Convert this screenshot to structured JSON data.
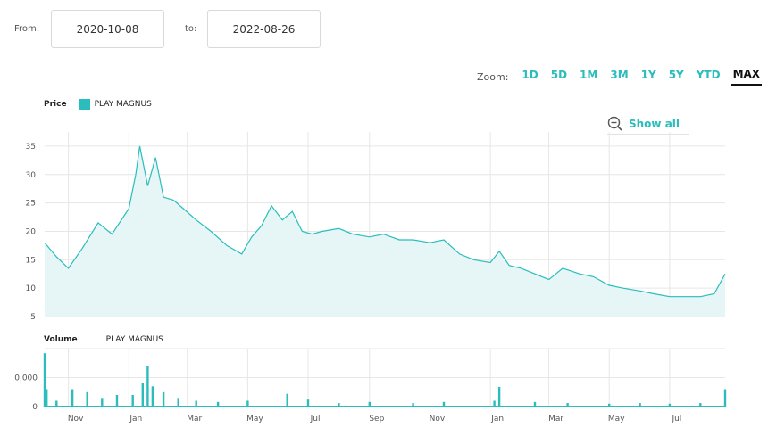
{
  "range": {
    "from_label": "From:",
    "from_value": "2020-10-08",
    "to_label": "to:",
    "to_value": "2022-08-26"
  },
  "zoom": {
    "label": "Zoom:",
    "options": [
      "1D",
      "5D",
      "1M",
      "3M",
      "1Y",
      "5Y",
      "YTD",
      "MAX"
    ],
    "selected": "MAX"
  },
  "show_all_label": "Show all",
  "colors": {
    "accent": "#2bbcbc",
    "fill": "#e6f6f6",
    "grid": "#e6e6e6"
  },
  "chart_data": [
    {
      "type": "area",
      "title": "Price",
      "legend": "PLAY MAGNUS",
      "yticks": [
        5,
        10,
        15,
        20,
        25,
        30,
        35
      ],
      "ylim": [
        5,
        37.5
      ],
      "xlim": [
        "2020-10-08",
        "2022-08-26"
      ],
      "x_tick_labels": [
        "Nov",
        "Jan",
        "Mar",
        "May",
        "Jul",
        "Sep",
        "Nov",
        "Jan",
        "Mar",
        "May",
        "Jul"
      ],
      "x": [
        "2020-10-08",
        "2020-10-20",
        "2020-11-01",
        "2020-11-15",
        "2020-12-01",
        "2020-12-15",
        "2021-01-01",
        "2021-01-08",
        "2021-01-12",
        "2021-01-20",
        "2021-01-28",
        "2021-02-05",
        "2021-02-15",
        "2021-02-25",
        "2021-03-10",
        "2021-03-25",
        "2021-04-10",
        "2021-04-25",
        "2021-05-05",
        "2021-05-15",
        "2021-05-25",
        "2021-06-05",
        "2021-06-15",
        "2021-06-25",
        "2021-07-05",
        "2021-07-15",
        "2021-08-01",
        "2021-08-15",
        "2021-09-01",
        "2021-09-15",
        "2021-10-01",
        "2021-10-15",
        "2021-11-01",
        "2021-11-15",
        "2021-12-01",
        "2021-12-15",
        "2022-01-01",
        "2022-01-10",
        "2022-01-20",
        "2022-02-01",
        "2022-02-15",
        "2022-03-01",
        "2022-03-15",
        "2022-04-01",
        "2022-04-15",
        "2022-05-01",
        "2022-05-15",
        "2022-06-01",
        "2022-06-15",
        "2022-07-01",
        "2022-07-15",
        "2022-08-01",
        "2022-08-15",
        "2022-08-26"
      ],
      "values": [
        18,
        15.5,
        13.5,
        17,
        21.5,
        19.5,
        24,
        30,
        35,
        28,
        33,
        26,
        25.5,
        24,
        22,
        20,
        17.5,
        16,
        19,
        21,
        24.5,
        22,
        23.5,
        20,
        19.5,
        20,
        20.5,
        19.5,
        19,
        19.5,
        18.5,
        18.5,
        18,
        18.5,
        16,
        15,
        14.5,
        16.5,
        14,
        13.5,
        12.5,
        11.5,
        13.5,
        12.5,
        12,
        10.5,
        10,
        9.5,
        9,
        8.5,
        8.5,
        8.5,
        9,
        12.5
      ]
    },
    {
      "type": "bar",
      "title": "Volume",
      "legend": "PLAY MAGNUS",
      "ytick_labels": [
        "0",
        "0,000"
      ],
      "ylim": [
        0,
        100
      ],
      "x": [
        "2020-10-08",
        "2020-10-10",
        "2020-10-20",
        "2020-11-05",
        "2020-11-20",
        "2020-12-05",
        "2020-12-20",
        "2021-01-05",
        "2021-01-15",
        "2021-01-20",
        "2021-01-25",
        "2021-02-05",
        "2021-02-20",
        "2021-03-10",
        "2021-04-01",
        "2021-05-01",
        "2021-06-10",
        "2021-07-01",
        "2021-08-01",
        "2021-09-01",
        "2021-10-15",
        "2021-11-15",
        "2022-01-05",
        "2022-01-10",
        "2022-02-15",
        "2022-03-20",
        "2022-05-01",
        "2022-06-01",
        "2022-07-01",
        "2022-08-01",
        "2022-08-26"
      ],
      "values": [
        92,
        30,
        10,
        30,
        25,
        15,
        20,
        20,
        40,
        70,
        35,
        25,
        15,
        10,
        8,
        10,
        22,
        12,
        6,
        8,
        6,
        8,
        10,
        34,
        8,
        6,
        5,
        6,
        5,
        6,
        30
      ]
    }
  ]
}
